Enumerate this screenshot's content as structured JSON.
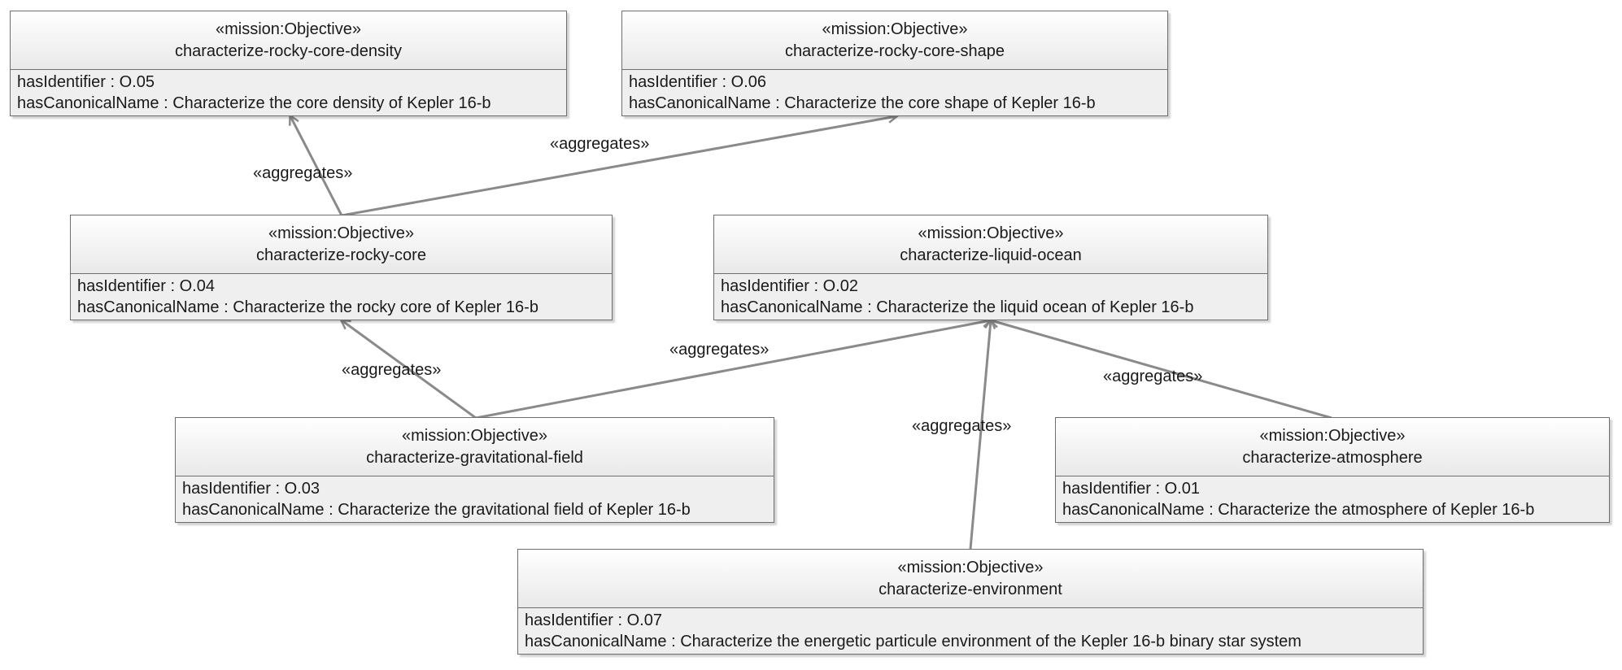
{
  "nodes": [
    {
      "id": "n-core-density",
      "stereotype": "«mission:Objective»",
      "name": "characterize-rocky-core-density",
      "attrs": [
        "hasIdentifier : O.05",
        "hasCanonicalName : Characterize the core density of Kepler 16-b"
      ]
    },
    {
      "id": "n-core-shape",
      "stereotype": "«mission:Objective»",
      "name": "characterize-rocky-core-shape",
      "attrs": [
        "hasIdentifier : O.06",
        "hasCanonicalName : Characterize the core shape of Kepler 16-b"
      ]
    },
    {
      "id": "n-rocky-core",
      "stereotype": "«mission:Objective»",
      "name": "characterize-rocky-core",
      "attrs": [
        "hasIdentifier : O.04",
        "hasCanonicalName : Characterize the rocky core of Kepler 16-b"
      ]
    },
    {
      "id": "n-liquid-ocean",
      "stereotype": "«mission:Objective»",
      "name": "characterize-liquid-ocean",
      "attrs": [
        "hasIdentifier : O.02",
        "hasCanonicalName : Characterize the liquid ocean of Kepler 16-b"
      ]
    },
    {
      "id": "n-grav-field",
      "stereotype": "«mission:Objective»",
      "name": "characterize-gravitational-field",
      "attrs": [
        "hasIdentifier : O.03",
        "hasCanonicalName : Characterize the gravitational field of Kepler 16-b"
      ]
    },
    {
      "id": "n-atmosphere",
      "stereotype": "«mission:Objective»",
      "name": "characterize-atmosphere",
      "attrs": [
        "hasIdentifier : O.01",
        "hasCanonicalName : Characterize the atmosphere of Kepler 16-b"
      ]
    },
    {
      "id": "n-environment",
      "stereotype": "«mission:Objective»",
      "name": "characterize-environment",
      "attrs": [
        "hasIdentifier : O.07",
        "hasCanonicalName : Characterize the energetic particule environment of the Kepler 16-b binary star system"
      ]
    }
  ],
  "edges": [
    {
      "from": "n-rocky-core",
      "to": "n-core-density",
      "label": "«aggregates»"
    },
    {
      "from": "n-rocky-core",
      "to": "n-core-shape",
      "label": "«aggregates»"
    },
    {
      "from": "n-grav-field",
      "to": "n-rocky-core",
      "label": "«aggregates»"
    },
    {
      "from": "n-grav-field",
      "to": "n-liquid-ocean",
      "label": "«aggregates»"
    },
    {
      "from": "n-environment",
      "to": "n-liquid-ocean",
      "label": "«aggregates»"
    },
    {
      "from": "n-atmosphere",
      "to": "n-liquid-ocean",
      "label": "«aggregates»"
    }
  ],
  "colors": {
    "line": "#8a8a8a",
    "border": "#6e6e6e",
    "body": "#efefef"
  }
}
